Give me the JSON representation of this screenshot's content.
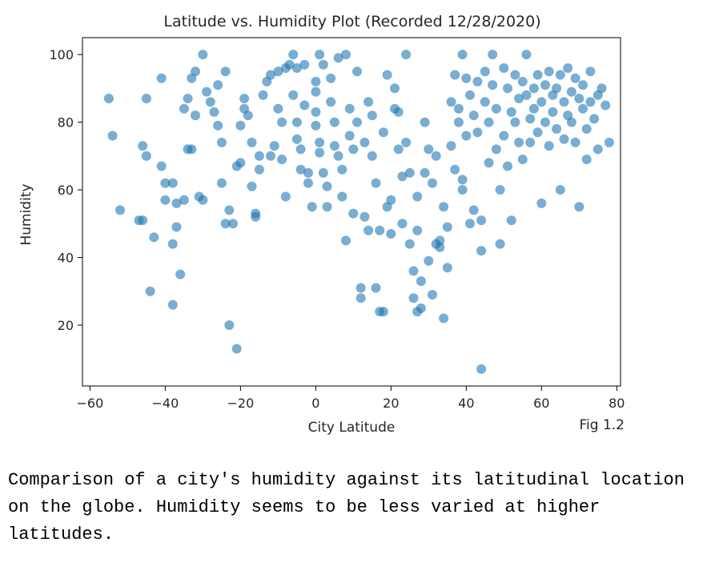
{
  "chart_data": {
    "type": "scatter",
    "title": "Latitude vs. Humidity Plot (Recorded 12/28/2020)",
    "xlabel": "City Latitude",
    "ylabel": "Humidity",
    "xlim": [
      -62,
      81
    ],
    "ylim": [
      2,
      105
    ],
    "xticks": [
      -60,
      -40,
      -20,
      0,
      20,
      40,
      60,
      80
    ],
    "yticks": [
      20,
      40,
      60,
      80,
      100
    ],
    "grid": false,
    "marker_color": "#1f77b4",
    "marker_alpha": 0.6,
    "series": [
      {
        "points": [
          [
            -55,
            87
          ],
          [
            -54,
            76
          ],
          [
            -52,
            54
          ],
          [
            -47,
            51
          ],
          [
            -46,
            51
          ],
          [
            -46,
            73
          ],
          [
            -45,
            70
          ],
          [
            -45,
            87
          ],
          [
            -44,
            30
          ],
          [
            -43,
            46
          ],
          [
            -41,
            93
          ],
          [
            -41,
            67
          ],
          [
            -40,
            62
          ],
          [
            -40,
            57
          ],
          [
            -38,
            44
          ],
          [
            -38,
            26
          ],
          [
            -38,
            62
          ],
          [
            -37,
            49
          ],
          [
            -37,
            56
          ],
          [
            -36,
            35
          ],
          [
            -35,
            57
          ],
          [
            -35,
            84
          ],
          [
            -34,
            87
          ],
          [
            -34,
            72
          ],
          [
            -33,
            72
          ],
          [
            -33,
            93
          ],
          [
            -32,
            95
          ],
          [
            -32,
            82
          ],
          [
            -31,
            58
          ],
          [
            -30,
            57
          ],
          [
            -30,
            100
          ],
          [
            -29,
            89
          ],
          [
            -28,
            86
          ],
          [
            -27,
            83
          ],
          [
            -26,
            91
          ],
          [
            -26,
            79
          ],
          [
            -25,
            74
          ],
          [
            -25,
            62
          ],
          [
            -24,
            95
          ],
          [
            -24,
            50
          ],
          [
            -23,
            54
          ],
          [
            -23,
            20
          ],
          [
            -22,
            50
          ],
          [
            -21,
            13
          ],
          [
            -21,
            67
          ],
          [
            -20,
            68
          ],
          [
            -20,
            79
          ],
          [
            -19,
            84
          ],
          [
            -19,
            87
          ],
          [
            -18,
            82
          ],
          [
            -17,
            74
          ],
          [
            -17,
            61
          ],
          [
            -16,
            53
          ],
          [
            -16,
            52
          ],
          [
            -15,
            70
          ],
          [
            -15,
            66
          ],
          [
            -14,
            88
          ],
          [
            -13,
            92
          ],
          [
            -12,
            94
          ],
          [
            -12,
            70
          ],
          [
            -11,
            73
          ],
          [
            -10,
            95
          ],
          [
            -10,
            84
          ],
          [
            -9,
            80
          ],
          [
            -9,
            69
          ],
          [
            -8,
            96
          ],
          [
            -8,
            58
          ],
          [
            -7,
            97
          ],
          [
            -6,
            100
          ],
          [
            -6,
            88
          ],
          [
            -5,
            96
          ],
          [
            -5,
            80
          ],
          [
            -5,
            75
          ],
          [
            -4,
            72
          ],
          [
            -4,
            66
          ],
          [
            -3,
            97
          ],
          [
            -3,
            85
          ],
          [
            -2,
            65
          ],
          [
            -2,
            62
          ],
          [
            -1,
            55
          ],
          [
            0,
            92
          ],
          [
            0,
            89
          ],
          [
            0,
            83
          ],
          [
            0,
            79
          ],
          [
            1,
            100
          ],
          [
            1,
            74
          ],
          [
            1,
            71
          ],
          [
            2,
            97
          ],
          [
            2,
            65
          ],
          [
            3,
            61
          ],
          [
            3,
            55
          ],
          [
            4,
            93
          ],
          [
            4,
            86
          ],
          [
            5,
            80
          ],
          [
            5,
            73
          ],
          [
            6,
            99
          ],
          [
            6,
            70
          ],
          [
            7,
            66
          ],
          [
            7,
            58
          ],
          [
            8,
            100
          ],
          [
            8,
            45
          ],
          [
            9,
            84
          ],
          [
            9,
            76
          ],
          [
            10,
            72
          ],
          [
            10,
            53
          ],
          [
            11,
            95
          ],
          [
            11,
            80
          ],
          [
            12,
            31
          ],
          [
            12,
            28
          ],
          [
            13,
            74
          ],
          [
            13,
            52
          ],
          [
            14,
            86
          ],
          [
            14,
            48
          ],
          [
            15,
            82
          ],
          [
            15,
            70
          ],
          [
            16,
            62
          ],
          [
            16,
            31
          ],
          [
            17,
            48
          ],
          [
            17,
            24
          ],
          [
            18,
            77
          ],
          [
            18,
            24
          ],
          [
            19,
            94
          ],
          [
            19,
            55
          ],
          [
            20,
            57
          ],
          [
            20,
            47
          ],
          [
            21,
            90
          ],
          [
            21,
            84
          ],
          [
            22,
            83
          ],
          [
            22,
            72
          ],
          [
            23,
            64
          ],
          [
            23,
            50
          ],
          [
            24,
            100
          ],
          [
            24,
            74
          ],
          [
            25,
            65
          ],
          [
            25,
            44
          ],
          [
            26,
            36
          ],
          [
            26,
            28
          ],
          [
            27,
            24
          ],
          [
            27,
            58
          ],
          [
            28,
            33
          ],
          [
            28,
            25
          ],
          [
            29,
            80
          ],
          [
            29,
            65
          ],
          [
            30,
            72
          ],
          [
            30,
            39
          ],
          [
            31,
            62
          ],
          [
            31,
            29
          ],
          [
            32,
            70
          ],
          [
            32,
            44
          ],
          [
            33,
            43
          ],
          [
            33,
            45
          ],
          [
            34,
            55
          ],
          [
            34,
            22
          ],
          [
            35,
            49
          ],
          [
            35,
            37
          ],
          [
            36,
            86
          ],
          [
            36,
            73
          ],
          [
            37,
            66
          ],
          [
            37,
            94
          ],
          [
            38,
            84
          ],
          [
            38,
            80
          ],
          [
            39,
            100
          ],
          [
            39,
            60
          ],
          [
            40,
            93
          ],
          [
            40,
            76
          ],
          [
            41,
            88
          ],
          [
            41,
            50
          ],
          [
            42,
            82
          ],
          [
            42,
            54
          ],
          [
            43,
            77
          ],
          [
            43,
            92
          ],
          [
            44,
            7
          ],
          [
            44,
            42
          ],
          [
            45,
            95
          ],
          [
            45,
            86
          ],
          [
            46,
            80
          ],
          [
            46,
            68
          ],
          [
            47,
            100
          ],
          [
            47,
            91
          ],
          [
            48,
            84
          ],
          [
            48,
            72
          ],
          [
            49,
            60
          ],
          [
            49,
            44
          ],
          [
            50,
            96
          ],
          [
            50,
            76
          ],
          [
            51,
            90
          ],
          [
            51,
            67
          ],
          [
            52,
            83
          ],
          [
            52,
            51
          ],
          [
            53,
            94
          ],
          [
            53,
            80
          ],
          [
            54,
            87
          ],
          [
            54,
            74
          ],
          [
            55,
            92
          ],
          [
            55,
            69
          ],
          [
            56,
            100
          ],
          [
            56,
            88
          ],
          [
            57,
            81
          ],
          [
            57,
            74
          ],
          [
            58,
            90
          ],
          [
            58,
            84
          ],
          [
            59,
            77
          ],
          [
            59,
            94
          ],
          [
            60,
            86
          ],
          [
            60,
            56
          ],
          [
            61,
            91
          ],
          [
            61,
            80
          ],
          [
            62,
            95
          ],
          [
            62,
            73
          ],
          [
            63,
            88
          ],
          [
            63,
            83
          ],
          [
            64,
            90
          ],
          [
            64,
            78
          ],
          [
            65,
            94
          ],
          [
            65,
            60
          ],
          [
            66,
            86
          ],
          [
            66,
            75
          ],
          [
            67,
            96
          ],
          [
            67,
            82
          ],
          [
            68,
            89
          ],
          [
            68,
            80
          ],
          [
            69,
            93
          ],
          [
            69,
            74
          ],
          [
            70,
            87
          ],
          [
            70,
            55
          ],
          [
            71,
            91
          ],
          [
            71,
            84
          ],
          [
            72,
            78
          ],
          [
            72,
            69
          ],
          [
            73,
            95
          ],
          [
            73,
            86
          ],
          [
            74,
            81
          ],
          [
            75,
            88
          ],
          [
            75,
            72
          ],
          [
            76,
            90
          ],
          [
            77,
            85
          ],
          [
            78,
            74
          ],
          [
            44,
            51
          ],
          [
            39,
            63
          ],
          [
            27,
            48
          ]
        ]
      }
    ]
  },
  "figure_label": "Fig 1.2",
  "caption": "Comparison of a city's humidity against its latitudinal location on the globe. Humidity seems to be less varied at higher latitudes."
}
